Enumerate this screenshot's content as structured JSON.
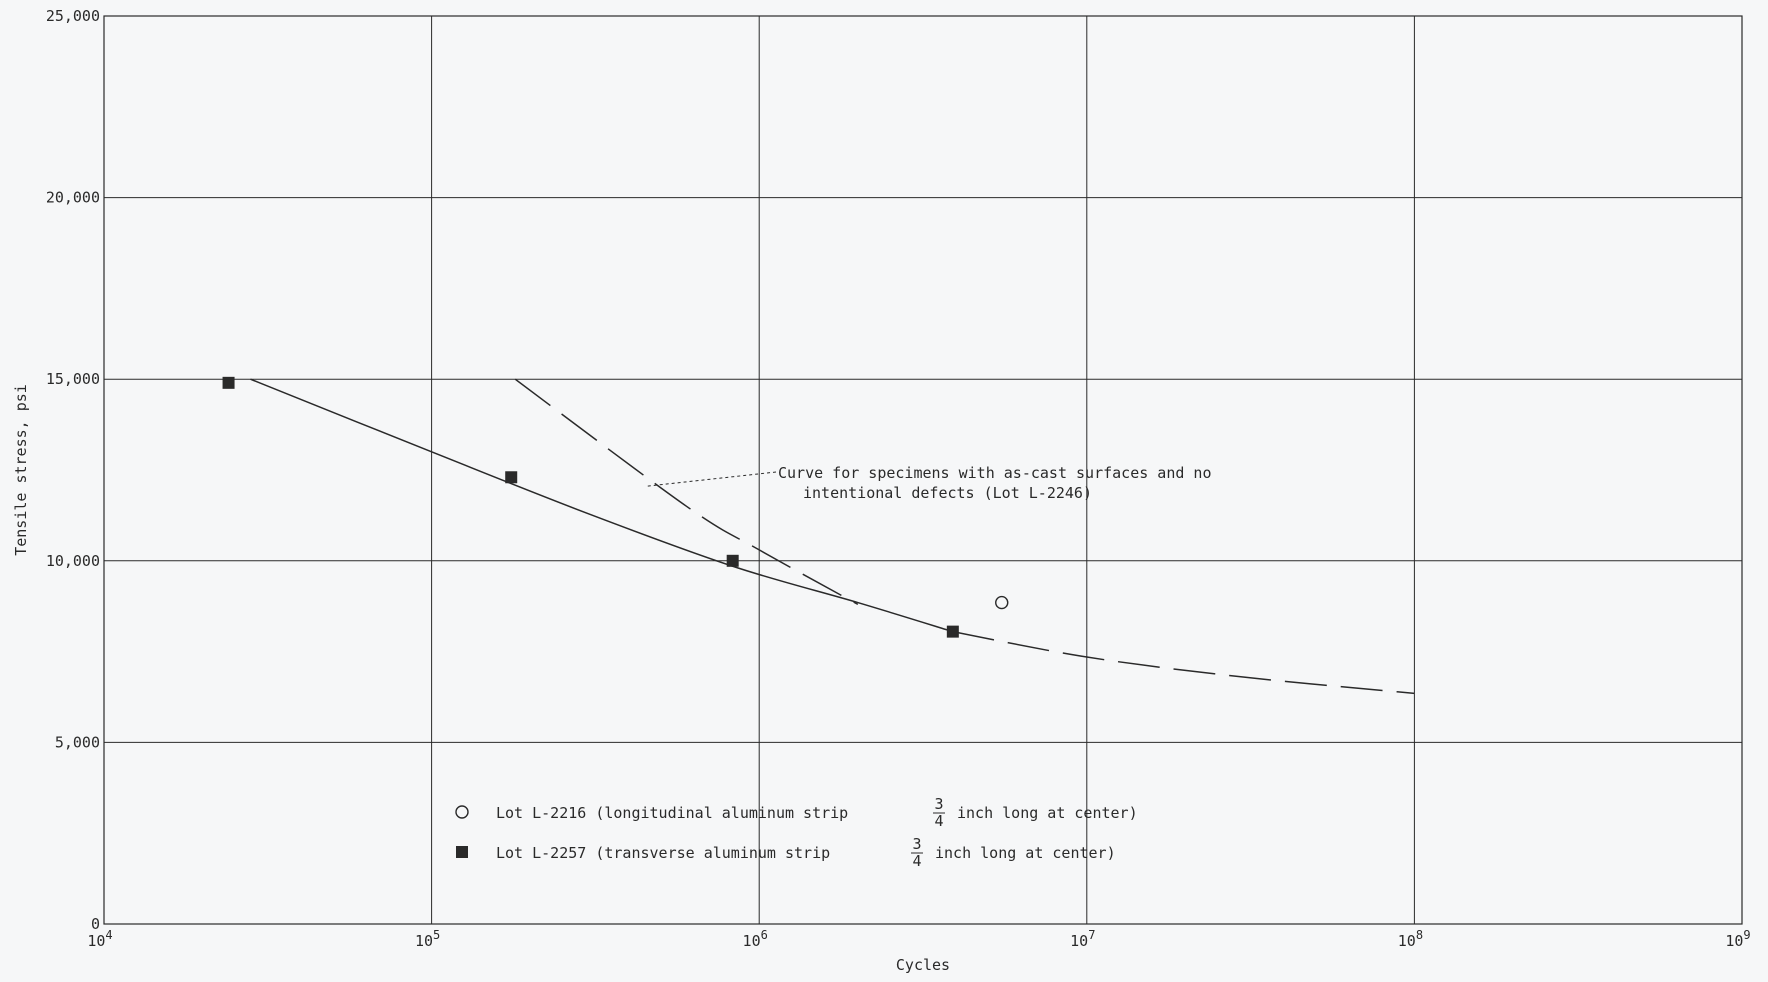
{
  "chart_data": {
    "type": "scatter",
    "xscale": "log",
    "xlim": [
      10000,
      1000000000
    ],
    "ylim": [
      0,
      25000
    ],
    "grid": true,
    "xlabel": "Cycles",
    "ylabel": "Tensile stress, psi",
    "y_ticks": [
      {
        "value": 0,
        "label": "0"
      },
      {
        "value": 5000,
        "label": "5,000"
      },
      {
        "value": 10000,
        "label": "10,000"
      },
      {
        "value": 15000,
        "label": "15,000"
      },
      {
        "value": 20000,
        "label": "20,000"
      },
      {
        "value": 25000,
        "label": "25,000"
      }
    ],
    "x_ticks": [
      {
        "value": 10000,
        "base": "10",
        "exp": "4"
      },
      {
        "value": 100000,
        "base": "10",
        "exp": "5"
      },
      {
        "value": 1000000,
        "base": "10",
        "exp": "6"
      },
      {
        "value": 10000000,
        "base": "10",
        "exp": "7"
      },
      {
        "value": 100000000,
        "base": "10",
        "exp": "8"
      },
      {
        "value": 1000000000,
        "base": "10",
        "exp": "9"
      }
    ],
    "series": [
      {
        "name": "Lot L-2216 (longitudinal aluminum strip 3/4 inch long at center)",
        "marker": "open-circle",
        "color": "#2a2a2a",
        "points": [
          {
            "x": 5500000,
            "y": 8850
          }
        ]
      },
      {
        "name": "Lot L-2257 (transverse aluminum strip 3/4 inch long at center)",
        "marker": "filled-square",
        "color": "#2a2a2a",
        "points": [
          {
            "x": 24000,
            "y": 14900
          },
          {
            "x": 175000,
            "y": 12300
          },
          {
            "x": 830000,
            "y": 10000
          },
          {
            "x": 3900000,
            "y": 8050
          }
        ]
      }
    ],
    "curves": [
      {
        "id": "lot-l2257-curve",
        "style": "solid-then-dashed",
        "points": [
          {
            "x": 28000,
            "y": 15000
          },
          {
            "x": 100000,
            "y": 13000
          },
          {
            "x": 300000,
            "y": 11300
          },
          {
            "x": 830000,
            "y": 9850
          },
          {
            "x": 2000000,
            "y": 8850
          },
          {
            "x": 3900000,
            "y": 8050
          },
          {
            "x": 10000000,
            "y": 7350
          },
          {
            "x": 30000000,
            "y": 6800
          },
          {
            "x": 100000000,
            "y": 6350
          }
        ],
        "dash_from_x": 3900000
      },
      {
        "id": "as-cast-curve",
        "style": "dashed",
        "points": [
          {
            "x": 180000,
            "y": 15000
          },
          {
            "x": 600000,
            "y": 11500
          },
          {
            "x": 1000000,
            "y": 10300
          },
          {
            "x": 2000000,
            "y": 8800
          }
        ]
      }
    ],
    "annotation": {
      "line1": "Curve for specimens with as-cast surfaces and no",
      "line2": "intentional defects (Lot L-2246)",
      "pointer_to": {
        "x": 450000,
        "y": 12050
      }
    },
    "legend": {
      "position": "bottom-left",
      "items": [
        {
          "marker": "open-circle",
          "prefix": "Lot L-2216 (longitudinal aluminum strip",
          "num": "3",
          "den": "4",
          "suffix": "inch long at center)"
        },
        {
          "marker": "filled-square",
          "prefix": "Lot L-2257 (transverse aluminum strip",
          "num": "3",
          "den": "4",
          "suffix": "inch long at center)"
        }
      ]
    }
  }
}
